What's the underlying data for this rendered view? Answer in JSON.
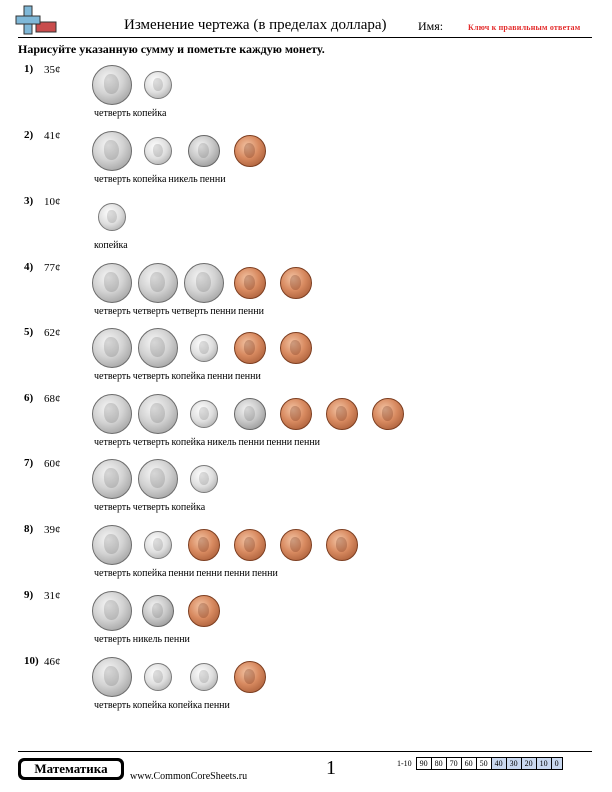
{
  "header": {
    "title": "Изменение чертежа (в пределах доллара)",
    "name_label": "Имя:",
    "answer_key": "Ключ к правильным ответам"
  },
  "instructions": "Нарисуйте указанную сумму и пометьте каждую монету.",
  "problems": [
    {
      "number": "1)",
      "amount": "35¢",
      "coins": [
        "quarter",
        "dime"
      ],
      "labels": [
        "четверть",
        "копейка"
      ]
    },
    {
      "number": "2)",
      "amount": "41¢",
      "coins": [
        "quarter",
        "dime",
        "nickel",
        "penny"
      ],
      "labels": [
        "четверть",
        "копейка",
        "никель",
        "пенни"
      ]
    },
    {
      "number": "3)",
      "amount": "10¢",
      "coins": [
        "dime"
      ],
      "labels": [
        "копейка"
      ]
    },
    {
      "number": "4)",
      "amount": "77¢",
      "coins": [
        "quarter",
        "quarter",
        "quarter",
        "penny",
        "penny"
      ],
      "labels": [
        "четверть",
        "четверть",
        "четверть",
        "пенни",
        "пенни"
      ]
    },
    {
      "number": "5)",
      "amount": "62¢",
      "coins": [
        "quarter",
        "quarter",
        "dime",
        "penny",
        "penny"
      ],
      "labels": [
        "четверть",
        "четверть",
        "копейка",
        "пенни",
        "пенни"
      ]
    },
    {
      "number": "6)",
      "amount": "68¢",
      "coins": [
        "quarter",
        "quarter",
        "dime",
        "nickel",
        "penny",
        "penny",
        "penny"
      ],
      "labels": [
        "четверть",
        "четверть",
        "копейка",
        "никель",
        "пенни",
        "пенни",
        "пенни"
      ]
    },
    {
      "number": "7)",
      "amount": "60¢",
      "coins": [
        "quarter",
        "quarter",
        "dime"
      ],
      "labels": [
        "четверть",
        "четверть",
        "копейка"
      ]
    },
    {
      "number": "8)",
      "amount": "39¢",
      "coins": [
        "quarter",
        "dime",
        "penny",
        "penny",
        "penny",
        "penny"
      ],
      "labels": [
        "четверть",
        "копейка",
        "пенни",
        "пенни",
        "пенни",
        "пенни"
      ]
    },
    {
      "number": "9)",
      "amount": "31¢",
      "coins": [
        "quarter",
        "nickel",
        "penny"
      ],
      "labels": [
        "четверть",
        "никель",
        "пенни"
      ]
    },
    {
      "number": "10)",
      "amount": "46¢",
      "coins": [
        "quarter",
        "dime",
        "dime",
        "penny"
      ],
      "labels": [
        "четверть",
        "копейка",
        "копейка",
        "пенни"
      ]
    }
  ],
  "footer": {
    "brand": "Математика",
    "site": "www.CommonCoreSheets.ru",
    "page": "1",
    "score_range": "1-10",
    "scores": [
      "90",
      "80",
      "70",
      "60",
      "50",
      "40",
      "30",
      "20",
      "10",
      "0"
    ]
  },
  "colors": {
    "answer_key": "#e32b2b",
    "logo_blue": "#7fb8d8",
    "logo_red": "#c94c4c",
    "score_highlight": "#c9d8f0"
  }
}
